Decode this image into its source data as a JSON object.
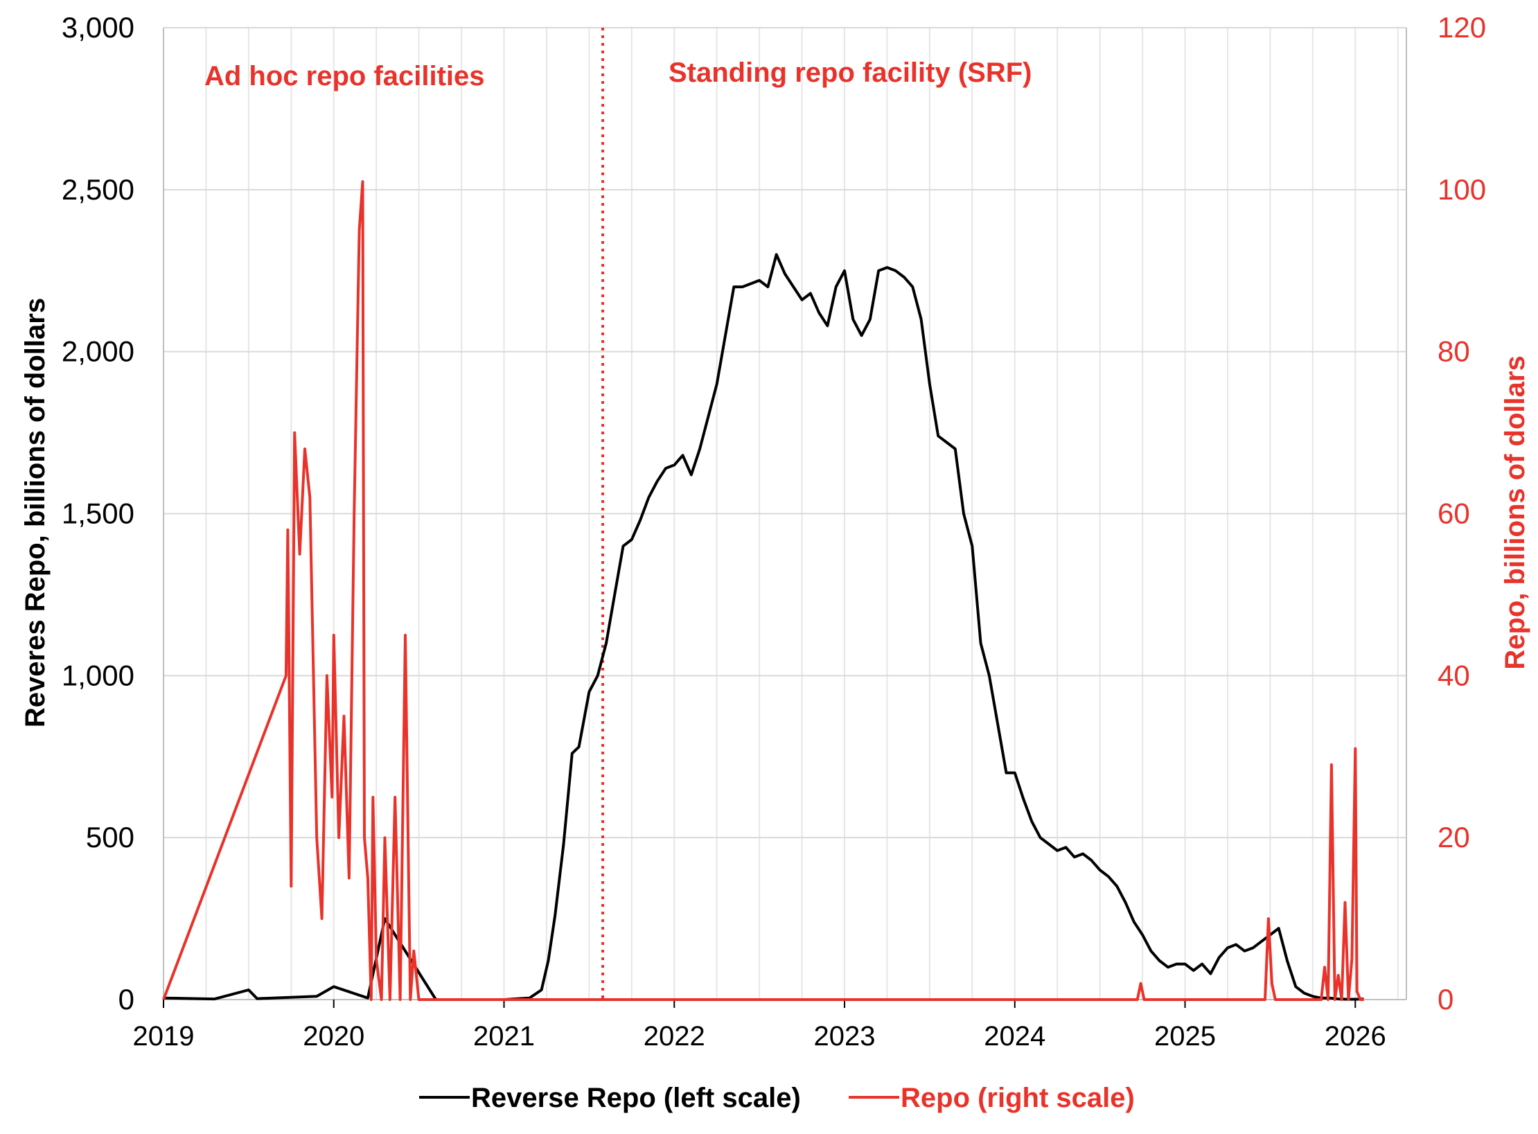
{
  "chart_data": {
    "type": "line",
    "title": "",
    "x_axis": {
      "ticks": [
        "2019",
        "2020",
        "2021",
        "2022",
        "2023",
        "2024",
        "2025",
        "2026"
      ],
      "range": [
        2019,
        2026.3
      ]
    },
    "y_left": {
      "label": "Reveres Repo, billions of dollars",
      "range": [
        0,
        3000
      ],
      "ticks": [
        0,
        500,
        1000,
        1500,
        2000,
        2500,
        3000
      ],
      "tick_labels": [
        "0",
        "500",
        "1,000",
        "1,500",
        "2,000",
        "2,500",
        "3,000"
      ]
    },
    "y_right": {
      "label": "Repo, billions of dollars",
      "range": [
        0,
        120
      ],
      "ticks": [
        0,
        20,
        40,
        60,
        80,
        100,
        120
      ],
      "tick_labels": [
        "0",
        "20",
        "40",
        "60",
        "80",
        "100",
        "120"
      ]
    },
    "grid": true,
    "legend": {
      "position": "bottom",
      "entries": [
        "Reverse Repo (left scale)",
        "Repo (right scale)"
      ]
    },
    "annotations": {
      "adhoc": "Ad hoc repo facilities",
      "srf": "Standing repo facility (SRF)",
      "srf_date": 2021.58
    },
    "series": [
      {
        "name": "Reverse Repo (left scale)",
        "axis": "left",
        "color": "#000000",
        "x": [
          2019.0,
          2019.3,
          2019.5,
          2019.55,
          2019.9,
          2020.0,
          2020.2,
          2020.3,
          2020.6,
          2021.0,
          2021.15,
          2021.22,
          2021.26,
          2021.3,
          2021.35,
          2021.4,
          2021.44,
          2021.5,
          2021.55,
          2021.6,
          2021.65,
          2021.7,
          2021.75,
          2021.8,
          2021.85,
          2021.9,
          2021.95,
          2022.0,
          2022.05,
          2022.1,
          2022.15,
          2022.2,
          2022.25,
          2022.3,
          2022.35,
          2022.4,
          2022.45,
          2022.5,
          2022.55,
          2022.6,
          2022.65,
          2022.7,
          2022.75,
          2022.8,
          2022.85,
          2022.9,
          2022.95,
          2023.0,
          2023.05,
          2023.1,
          2023.15,
          2023.2,
          2023.25,
          2023.3,
          2023.35,
          2023.4,
          2023.45,
          2023.5,
          2023.55,
          2023.6,
          2023.65,
          2023.7,
          2023.75,
          2023.8,
          2023.85,
          2023.9,
          2023.95,
          2024.0,
          2024.05,
          2024.1,
          2024.15,
          2024.2,
          2024.25,
          2024.3,
          2024.35,
          2024.4,
          2024.45,
          2024.5,
          2024.55,
          2024.6,
          2024.65,
          2024.7,
          2024.75,
          2024.8,
          2024.85,
          2024.9,
          2024.95,
          2025.0,
          2025.05,
          2025.1,
          2025.15,
          2025.2,
          2025.25,
          2025.3,
          2025.35,
          2025.4,
          2025.45,
          2025.5,
          2025.55,
          2025.6,
          2025.65,
          2025.7,
          2025.75,
          2025.8,
          2025.85,
          2025.9,
          2025.95,
          2026.0,
          2026.05
        ],
        "values": [
          5,
          2,
          30,
          3,
          10,
          40,
          5,
          250,
          0,
          0,
          5,
          30,
          120,
          260,
          480,
          760,
          780,
          950,
          1000,
          1100,
          1250,
          1400,
          1420,
          1480,
          1550,
          1600,
          1640,
          1650,
          1680,
          1620,
          1700,
          1800,
          1900,
          2050,
          2200,
          2200,
          2210,
          2220,
          2200,
          2300,
          2240,
          2200,
          2160,
          2180,
          2120,
          2080,
          2200,
          2250,
          2100,
          2050,
          2100,
          2250,
          2260,
          2250,
          2230,
          2200,
          2100,
          1900,
          1740,
          1720,
          1700,
          1500,
          1400,
          1100,
          1000,
          850,
          700,
          700,
          620,
          550,
          500,
          480,
          460,
          470,
          440,
          450,
          430,
          400,
          380,
          350,
          300,
          240,
          200,
          150,
          120,
          100,
          110,
          110,
          90,
          110,
          80,
          130,
          160,
          170,
          150,
          160,
          180,
          200,
          220,
          120,
          40,
          20,
          10,
          5,
          5,
          2,
          1,
          1,
          2
        ]
      },
      {
        "name": "Repo (right scale)",
        "axis": "right",
        "color": "#e8322a",
        "x": [
          2019.0,
          2019.72,
          2019.73,
          2019.75,
          2019.77,
          2019.8,
          2019.83,
          2019.86,
          2019.9,
          2019.93,
          2019.96,
          2019.99,
          2020.0,
          2020.03,
          2020.06,
          2020.09,
          2020.12,
          2020.15,
          2020.17,
          2020.18,
          2020.2,
          2020.22,
          2020.23,
          2020.25,
          2020.28,
          2020.3,
          2020.33,
          2020.36,
          2020.39,
          2020.42,
          2020.45,
          2020.47,
          2020.5,
          2020.52,
          2024.72,
          2024.74,
          2024.76,
          2025.47,
          2025.49,
          2025.51,
          2025.53,
          2025.8,
          2025.82,
          2025.84,
          2025.86,
          2025.88,
          2025.9,
          2025.92,
          2025.94,
          2025.96,
          2025.98,
          2026.0,
          2026.01,
          2026.03,
          2026.05
        ],
        "values": [
          0,
          40,
          58,
          14,
          70,
          55,
          68,
          62,
          20,
          10,
          40,
          25,
          45,
          20,
          35,
          15,
          60,
          95,
          101,
          20,
          15,
          0,
          25,
          5,
          0,
          20,
          0,
          25,
          0,
          45,
          0,
          6,
          0,
          0,
          0,
          2,
          0,
          0,
          10,
          2,
          0,
          0,
          4,
          0,
          29,
          0,
          3,
          0,
          12,
          0,
          5,
          31,
          1,
          0,
          0
        ]
      }
    ]
  }
}
